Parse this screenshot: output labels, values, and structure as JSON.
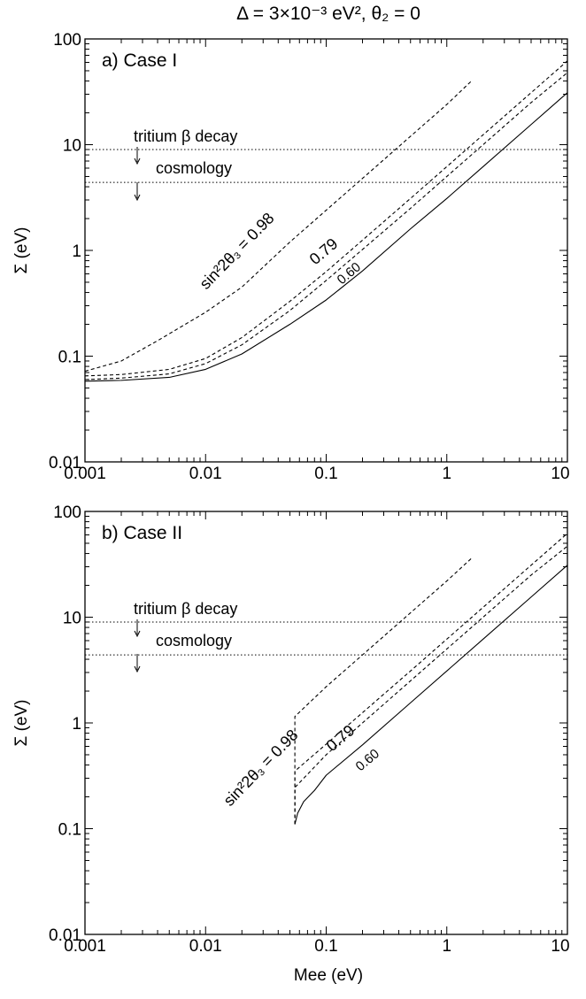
{
  "figure": {
    "title": "Δ = 3×10⁻³ eV²,   θ₂ = 0",
    "xlabel": "Mee  (eV)",
    "ylabel": "Σ (eV)"
  },
  "chart_data": [
    {
      "type": "line",
      "panel_label": "a) Case I",
      "title": "Δ = 3×10⁻³ eV²,   θ₂ = 0",
      "xlabel": "",
      "ylabel": "Σ (eV)",
      "xscale": "log",
      "yscale": "log",
      "xlim": [
        0.001,
        10
      ],
      "ylim": [
        0.01,
        100
      ],
      "xticks": [
        "0.001",
        "0.01",
        "0.1",
        "1",
        "10"
      ],
      "yticks": [
        "0.01",
        "0.1",
        "1",
        "10",
        "100"
      ],
      "grid": false,
      "series": [
        {
          "label": "sin²2θ₃ = 0.98",
          "style": "dashed",
          "x": [
            0.001,
            0.002,
            0.004,
            0.01,
            0.02,
            0.05,
            0.1,
            0.2,
            0.5,
            1,
            1.6
          ],
          "y": [
            0.072,
            0.09,
            0.14,
            0.26,
            0.45,
            1.2,
            2.4,
            4.8,
            12,
            24,
            40
          ]
        },
        {
          "label": "0.79",
          "style": "dashed",
          "x": [
            0.001,
            0.002,
            0.005,
            0.01,
            0.02,
            0.05,
            0.1,
            0.2,
            0.5,
            1,
            2,
            5,
            10
          ],
          "y": [
            0.065,
            0.067,
            0.075,
            0.095,
            0.15,
            0.33,
            0.63,
            1.25,
            3.1,
            6.2,
            12.4,
            31,
            62
          ]
        },
        {
          "label": "0.60",
          "style": "dashed",
          "x": [
            0.001,
            0.002,
            0.005,
            0.01,
            0.02,
            0.05,
            0.1,
            0.2,
            0.5,
            1,
            2,
            5,
            10
          ],
          "y": [
            0.06,
            0.062,
            0.068,
            0.085,
            0.128,
            0.27,
            0.52,
            1.02,
            2.5,
            5,
            10,
            25,
            48
          ]
        },
        {
          "label": "",
          "style": "solid",
          "x": [
            0.001,
            0.002,
            0.005,
            0.01,
            0.02,
            0.05,
            0.1,
            0.2,
            0.5,
            1,
            2,
            5,
            10
          ],
          "y": [
            0.058,
            0.059,
            0.063,
            0.075,
            0.105,
            0.2,
            0.34,
            0.64,
            1.6,
            3.1,
            6.2,
            15.5,
            31
          ]
        }
      ],
      "hlines": [
        {
          "label": "tritium β decay",
          "y": 9
        },
        {
          "label": "cosmology",
          "y": 4.4
        }
      ]
    },
    {
      "type": "line",
      "panel_label": "b) Case II",
      "xlabel": "Mee  (eV)",
      "ylabel": "Σ (eV)",
      "xscale": "log",
      "yscale": "log",
      "xlim": [
        0.001,
        10
      ],
      "ylim": [
        0.01,
        100
      ],
      "xticks": [
        "0.001",
        "0.01",
        "0.1",
        "1",
        "10"
      ],
      "yticks": [
        "0.01",
        "0.1",
        "1",
        "10",
        "100"
      ],
      "grid": false,
      "series": [
        {
          "label": "sin²2θ₃ = 0.98",
          "style": "dashed",
          "x": [
            0.055,
            0.055,
            0.1,
            0.2,
            0.5,
            1,
            1.6
          ],
          "y": [
            0.11,
            1.15,
            2.2,
            4.4,
            11,
            22,
            36
          ]
        },
        {
          "label": "0.79",
          "style": "dashed",
          "x": [
            0.055,
            0.055,
            0.1,
            0.2,
            0.5,
            1,
            2,
            5,
            10
          ],
          "y": [
            0.11,
            0.35,
            0.63,
            1.25,
            3.1,
            6.2,
            12.4,
            31,
            62
          ]
        },
        {
          "label": "0.60",
          "style": "dashed",
          "x": [
            0.055,
            0.055,
            0.1,
            0.2,
            0.5,
            1,
            2,
            5,
            10
          ],
          "y": [
            0.11,
            0.245,
            0.5,
            1,
            2.5,
            5,
            10,
            25,
            47
          ]
        },
        {
          "label": "",
          "style": "solid",
          "x": [
            0.055,
            0.058,
            0.065,
            0.08,
            0.1,
            0.2,
            0.5,
            1,
            2,
            5,
            10
          ],
          "y": [
            0.11,
            0.14,
            0.18,
            0.23,
            0.32,
            0.62,
            1.55,
            3.1,
            6.2,
            15.5,
            31
          ]
        }
      ],
      "hlines": [
        {
          "label": "tritium β decay",
          "y": 9
        },
        {
          "label": "cosmology",
          "y": 4.4
        }
      ]
    }
  ]
}
